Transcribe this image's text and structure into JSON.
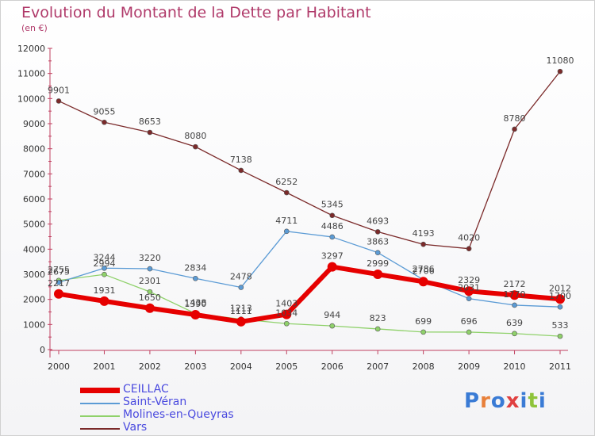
{
  "title": "Evolution du Montant de la Dette par Habitant",
  "subtitle": "(en €)",
  "logo": "Proxiti",
  "chart_data": {
    "type": "line",
    "x": [
      "2000",
      "2001",
      "2002",
      "2003",
      "2004",
      "2005",
      "2006",
      "2007",
      "2008",
      "2009",
      "2010",
      "2011"
    ],
    "ylim": [
      0,
      12000
    ],
    "yticks": [
      0,
      1000,
      2000,
      3000,
      4000,
      5000,
      6000,
      7000,
      8000,
      9000,
      10000,
      11000,
      12000
    ],
    "grid": false,
    "legend": "bottom-left",
    "series": [
      {
        "name": "CEILLAC",
        "color": "#e60000",
        "width": 6,
        "values": [
          2217,
          1931,
          1650,
          1390,
          1111,
          1403,
          3297,
          2999,
          2706,
          2329,
          2172,
          2012
        ]
      },
      {
        "name": "Saint-Véran",
        "color": "#5b9bd5",
        "width": 1.3,
        "values": [
          2675,
          3244,
          3220,
          2834,
          2478,
          4711,
          4486,
          3863,
          2786,
          2031,
          1770,
          1700
        ]
      },
      {
        "name": "Molines-en-Queyras",
        "color": "#8fd16a",
        "width": 1.3,
        "values": [
          2755,
          2994,
          2301,
          1438,
          1213,
          1034,
          944,
          823,
          699,
          696,
          639,
          533
        ]
      },
      {
        "name": "Vars",
        "color": "#7b2a2a",
        "width": 1.3,
        "values": [
          9901,
          9055,
          8653,
          8080,
          7138,
          6252,
          5345,
          4693,
          4193,
          4020,
          8780,
          11080
        ]
      }
    ]
  }
}
